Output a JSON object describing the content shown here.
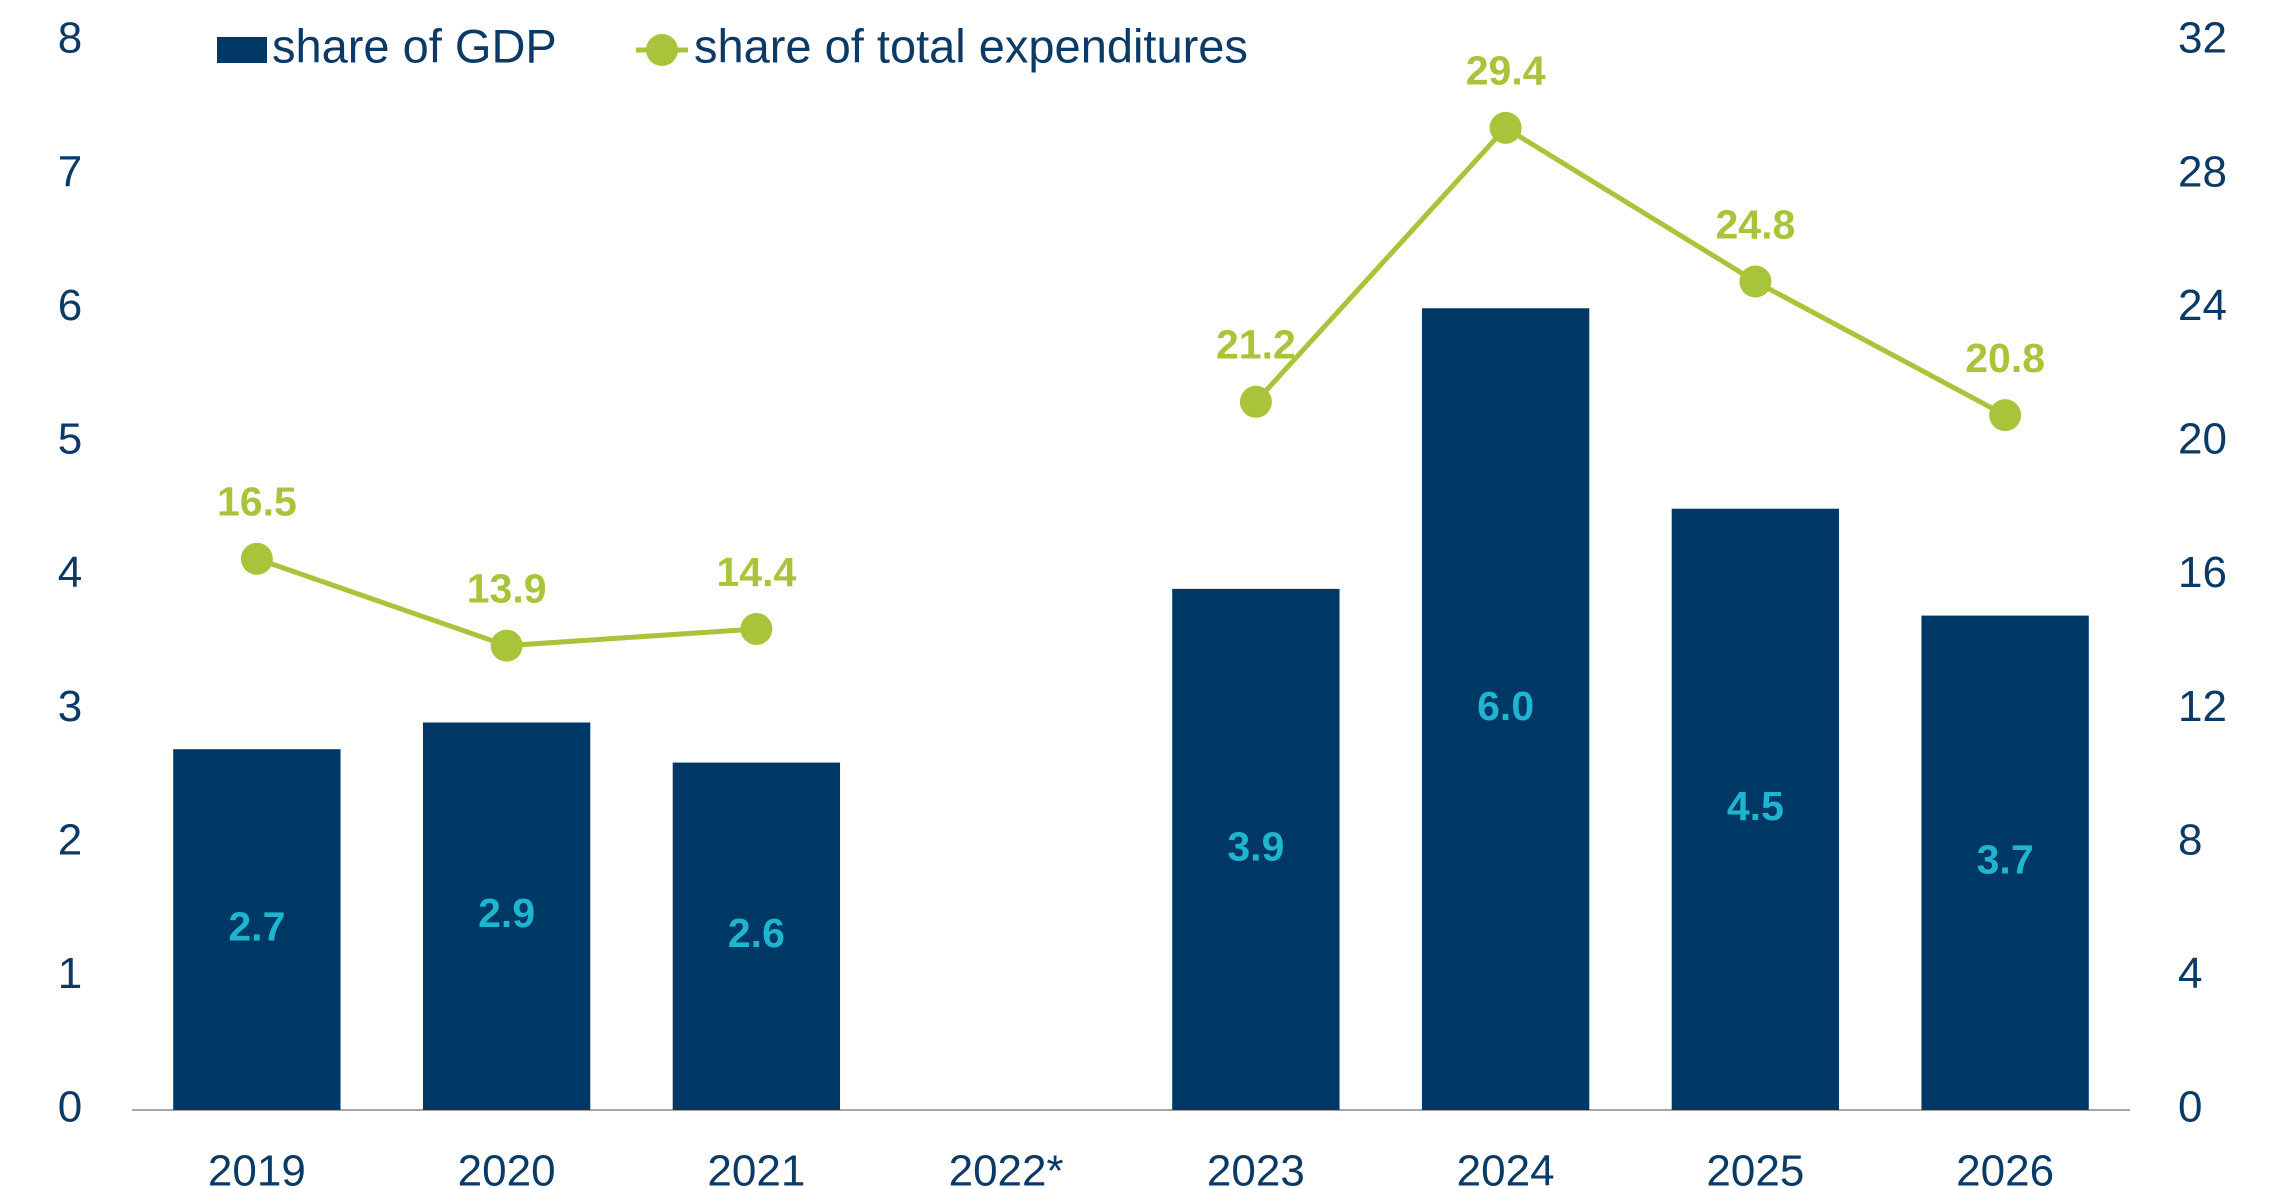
{
  "chart_data": {
    "type": "bar",
    "categories": [
      "2019",
      "2020",
      "2021",
      "2022*",
      "2023",
      "2024",
      "2025",
      "2026"
    ],
    "series": [
      {
        "name": "share of GDP",
        "type": "bar",
        "color": "#003865",
        "label_color": "#1fb5d0",
        "values": [
          2.7,
          2.9,
          2.6,
          null,
          3.9,
          6.0,
          4.5,
          3.7
        ],
        "value_labels": [
          "2.7",
          "2.9",
          "2.6",
          null,
          "3.9",
          "6.0",
          "4.5",
          "3.7"
        ]
      },
      {
        "name": "share of total expenditures",
        "type": "line",
        "axis": "y2",
        "color": "#a8c43a",
        "label_color": "#a8c43a",
        "values": [
          16.5,
          13.9,
          14.4,
          null,
          21.2,
          29.4,
          24.8,
          20.8
        ],
        "value_labels": [
          "16.5",
          "13.9",
          "14.4",
          null,
          "21.2",
          "29.4",
          "24.8",
          "20.8"
        ]
      }
    ],
    "ylim": [
      0,
      8
    ],
    "yticks": [
      0,
      1,
      2,
      3,
      4,
      5,
      6,
      7,
      8
    ],
    "y2lim": [
      0,
      32
    ],
    "y2ticks": [
      0,
      4,
      8,
      12,
      16,
      20,
      24,
      28,
      32
    ],
    "grid": false,
    "legend": "top"
  }
}
